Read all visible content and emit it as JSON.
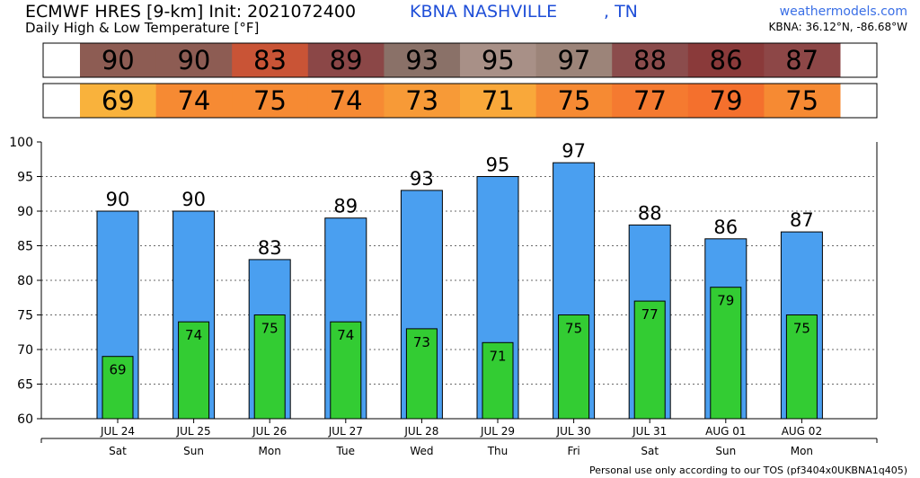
{
  "header": {
    "title": "ECMWF HRES [9-km] Init: 2021072400",
    "subtitle": "Daily High & Low Temperature [°F]",
    "station": "KBNA NASHVILLE",
    "state": ", TN",
    "site": "weathermodels.com",
    "coords": "KBNA: 36.12°N, -86.68°W"
  },
  "footer": {
    "tos": "Personal use only according to our TOS (pf3404x0UKBNA1q405)"
  },
  "colors": {
    "high_bar": "#4a9ff0",
    "low_bar": "#33cc33",
    "high_strip": [
      "#8d5c53",
      "#8d5c53",
      "#c95436",
      "#8b4747",
      "#8a7168",
      "#a89087",
      "#9c8479",
      "#8b4c4c",
      "#8a3a3a",
      "#8d4747"
    ],
    "low_strip": [
      "#f9b23c",
      "#f68a33",
      "#f68a33",
      "#f68a33",
      "#f79a37",
      "#f9a83a",
      "#f68a33",
      "#f57a30",
      "#f4702d",
      "#f68a33"
    ]
  },
  "chart_data": {
    "type": "bar",
    "categories": [
      "JUL 24",
      "JUL 25",
      "JUL 26",
      "JUL 27",
      "JUL 28",
      "JUL 29",
      "JUL 30",
      "JUL 31",
      "AUG 01",
      "AUG 02"
    ],
    "days": [
      "Sat",
      "Sun",
      "Mon",
      "Tue",
      "Wed",
      "Thu",
      "Fri",
      "Sat",
      "Sun",
      "Mon"
    ],
    "series": [
      {
        "values": [
          90,
          90,
          83,
          89,
          93,
          95,
          97,
          88,
          86,
          87
        ]
      },
      {
        "values": [
          69,
          74,
          75,
          74,
          73,
          71,
          75,
          77,
          79,
          75
        ]
      }
    ],
    "yticks": [
      60,
      65,
      70,
      75,
      80,
      85,
      90,
      95,
      100
    ],
    "ylim": [
      60,
      100
    ],
    "grid": true
  }
}
